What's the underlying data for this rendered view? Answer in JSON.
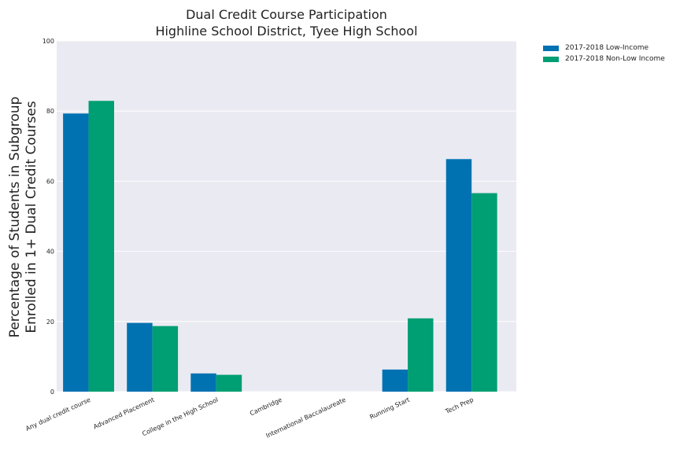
{
  "chart_data": {
    "type": "bar",
    "title": "Dual Credit Course Participation",
    "subtitle": "Highline School District, Tyee High School",
    "xlabel": "",
    "ylabel": "Percentage of Students in Subgroup",
    "ylabel_line2": "Enrolled in 1+ Dual Credit Courses",
    "ylim": [
      0,
      100
    ],
    "yticks": [
      "0",
      "20",
      "40",
      "60",
      "80",
      "100"
    ],
    "ytick_values": [
      0,
      20,
      40,
      60,
      80,
      100
    ],
    "grid": true,
    "legend_position": "outside-top-right",
    "categories": [
      "Any dual credit course",
      "Advanced Placement",
      "College in the High School",
      "Cambridge",
      "International Baccalaureate",
      "Running Start",
      "Tech Prep"
    ],
    "series": [
      {
        "name": "2017-2018 Low-Income",
        "color": "#0072b2",
        "values": [
          79.3,
          19.6,
          5.2,
          0,
          0,
          6.3,
          66.3
        ]
      },
      {
        "name": "2017-2018 Non-Low Income",
        "color": "#009e73",
        "values": [
          82.9,
          18.7,
          4.8,
          0,
          0,
          20.9,
          56.6
        ]
      }
    ]
  }
}
